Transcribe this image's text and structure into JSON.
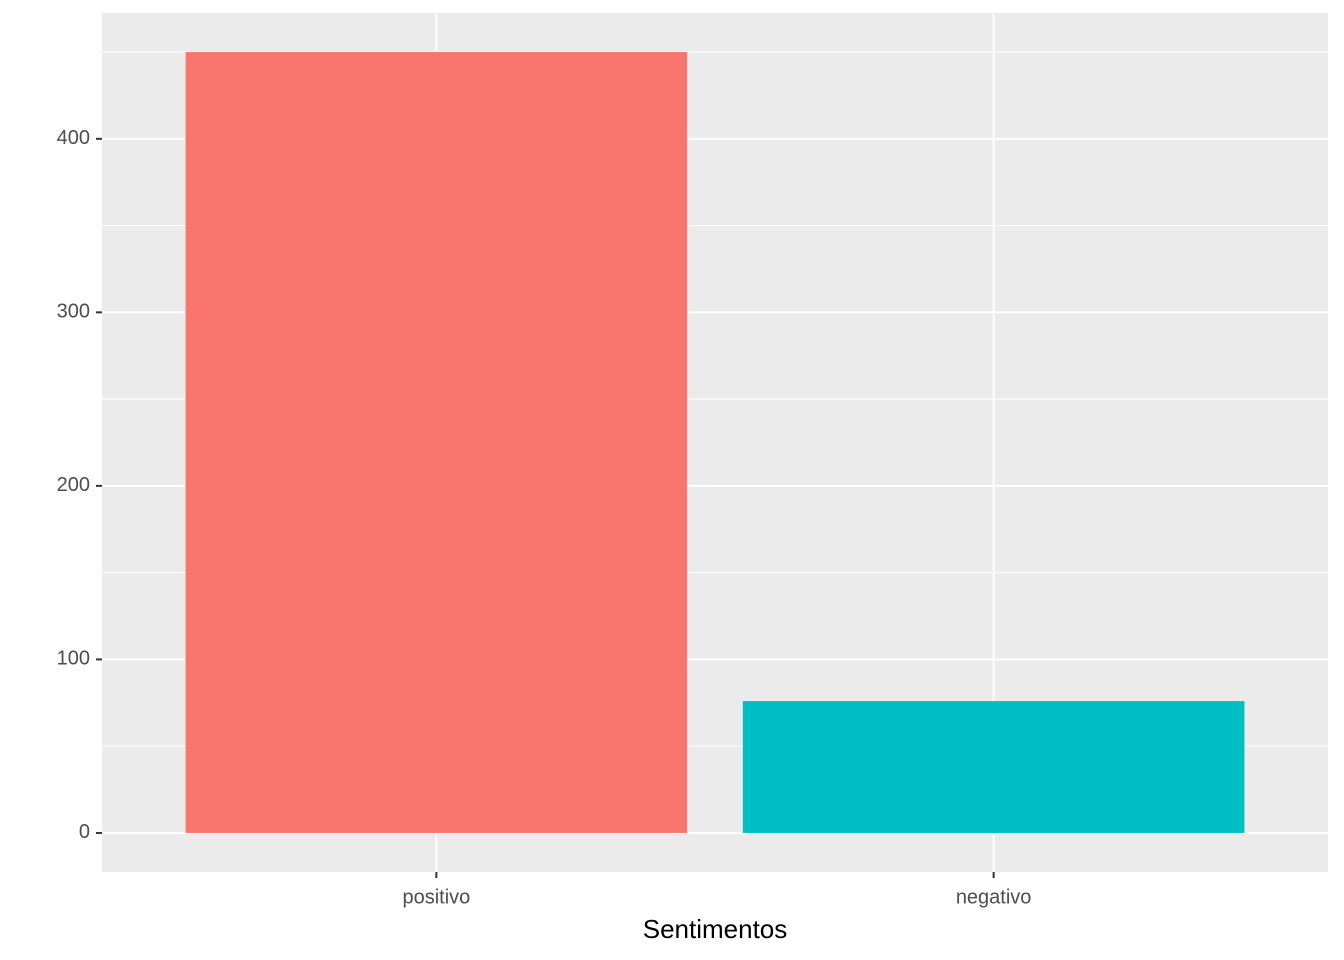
{
  "chart_data": {
    "type": "bar",
    "categories": [
      "positivo",
      "negativo"
    ],
    "values": [
      450,
      76
    ],
    "colors": [
      "#F8766D",
      "#00BFC4"
    ],
    "x_label": "Sentimentos",
    "ylim": [
      -22.5,
      472.5
    ],
    "yticks": [
      0,
      100,
      200,
      300,
      400
    ],
    "y_minor_grid": [
      50,
      150,
      250,
      350,
      450
    ],
    "grid": true
  }
}
